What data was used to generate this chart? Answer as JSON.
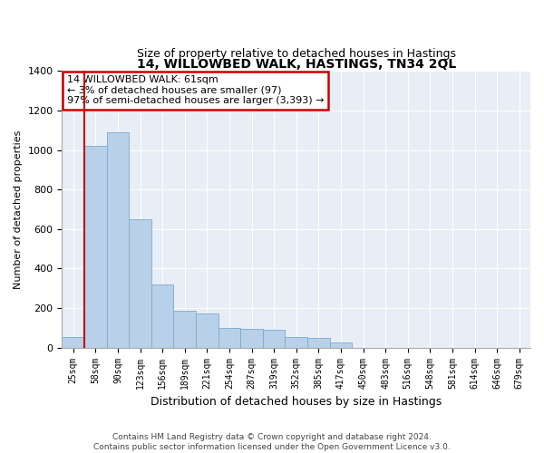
{
  "title": "14, WILLOWBED WALK, HASTINGS, TN34 2QL",
  "subtitle": "Size of property relative to detached houses in Hastings",
  "xlabel": "Distribution of detached houses by size in Hastings",
  "ylabel": "Number of detached properties",
  "bar_color": "#b8d0e8",
  "bar_edge_color": "#7aaacf",
  "background_color": "#e8eef5",
  "grid_color": "#ffffff",
  "categories": [
    "25sqm",
    "58sqm",
    "90sqm",
    "123sqm",
    "156sqm",
    "189sqm",
    "221sqm",
    "254sqm",
    "287sqm",
    "319sqm",
    "352sqm",
    "385sqm",
    "417sqm",
    "450sqm",
    "483sqm",
    "516sqm",
    "548sqm",
    "581sqm",
    "614sqm",
    "646sqm",
    "679sqm"
  ],
  "values": [
    55,
    1020,
    1090,
    650,
    320,
    185,
    175,
    100,
    95,
    90,
    55,
    50,
    28,
    0,
    0,
    0,
    0,
    0,
    0,
    0,
    0
  ],
  "ylim": [
    0,
    1400
  ],
  "yticks": [
    0,
    200,
    400,
    600,
    800,
    1000,
    1200,
    1400
  ],
  "annotation_line_bar_index": 1,
  "annotation_text": "14 WILLOWBED WALK: 61sqm\n← 3% of detached houses are smaller (97)\n97% of semi-detached houses are larger (3,393) →",
  "annotation_box_color": "#cc0000",
  "footer_line1": "Contains HM Land Registry data © Crown copyright and database right 2024.",
  "footer_line2": "Contains public sector information licensed under the Open Government Licence v3.0."
}
